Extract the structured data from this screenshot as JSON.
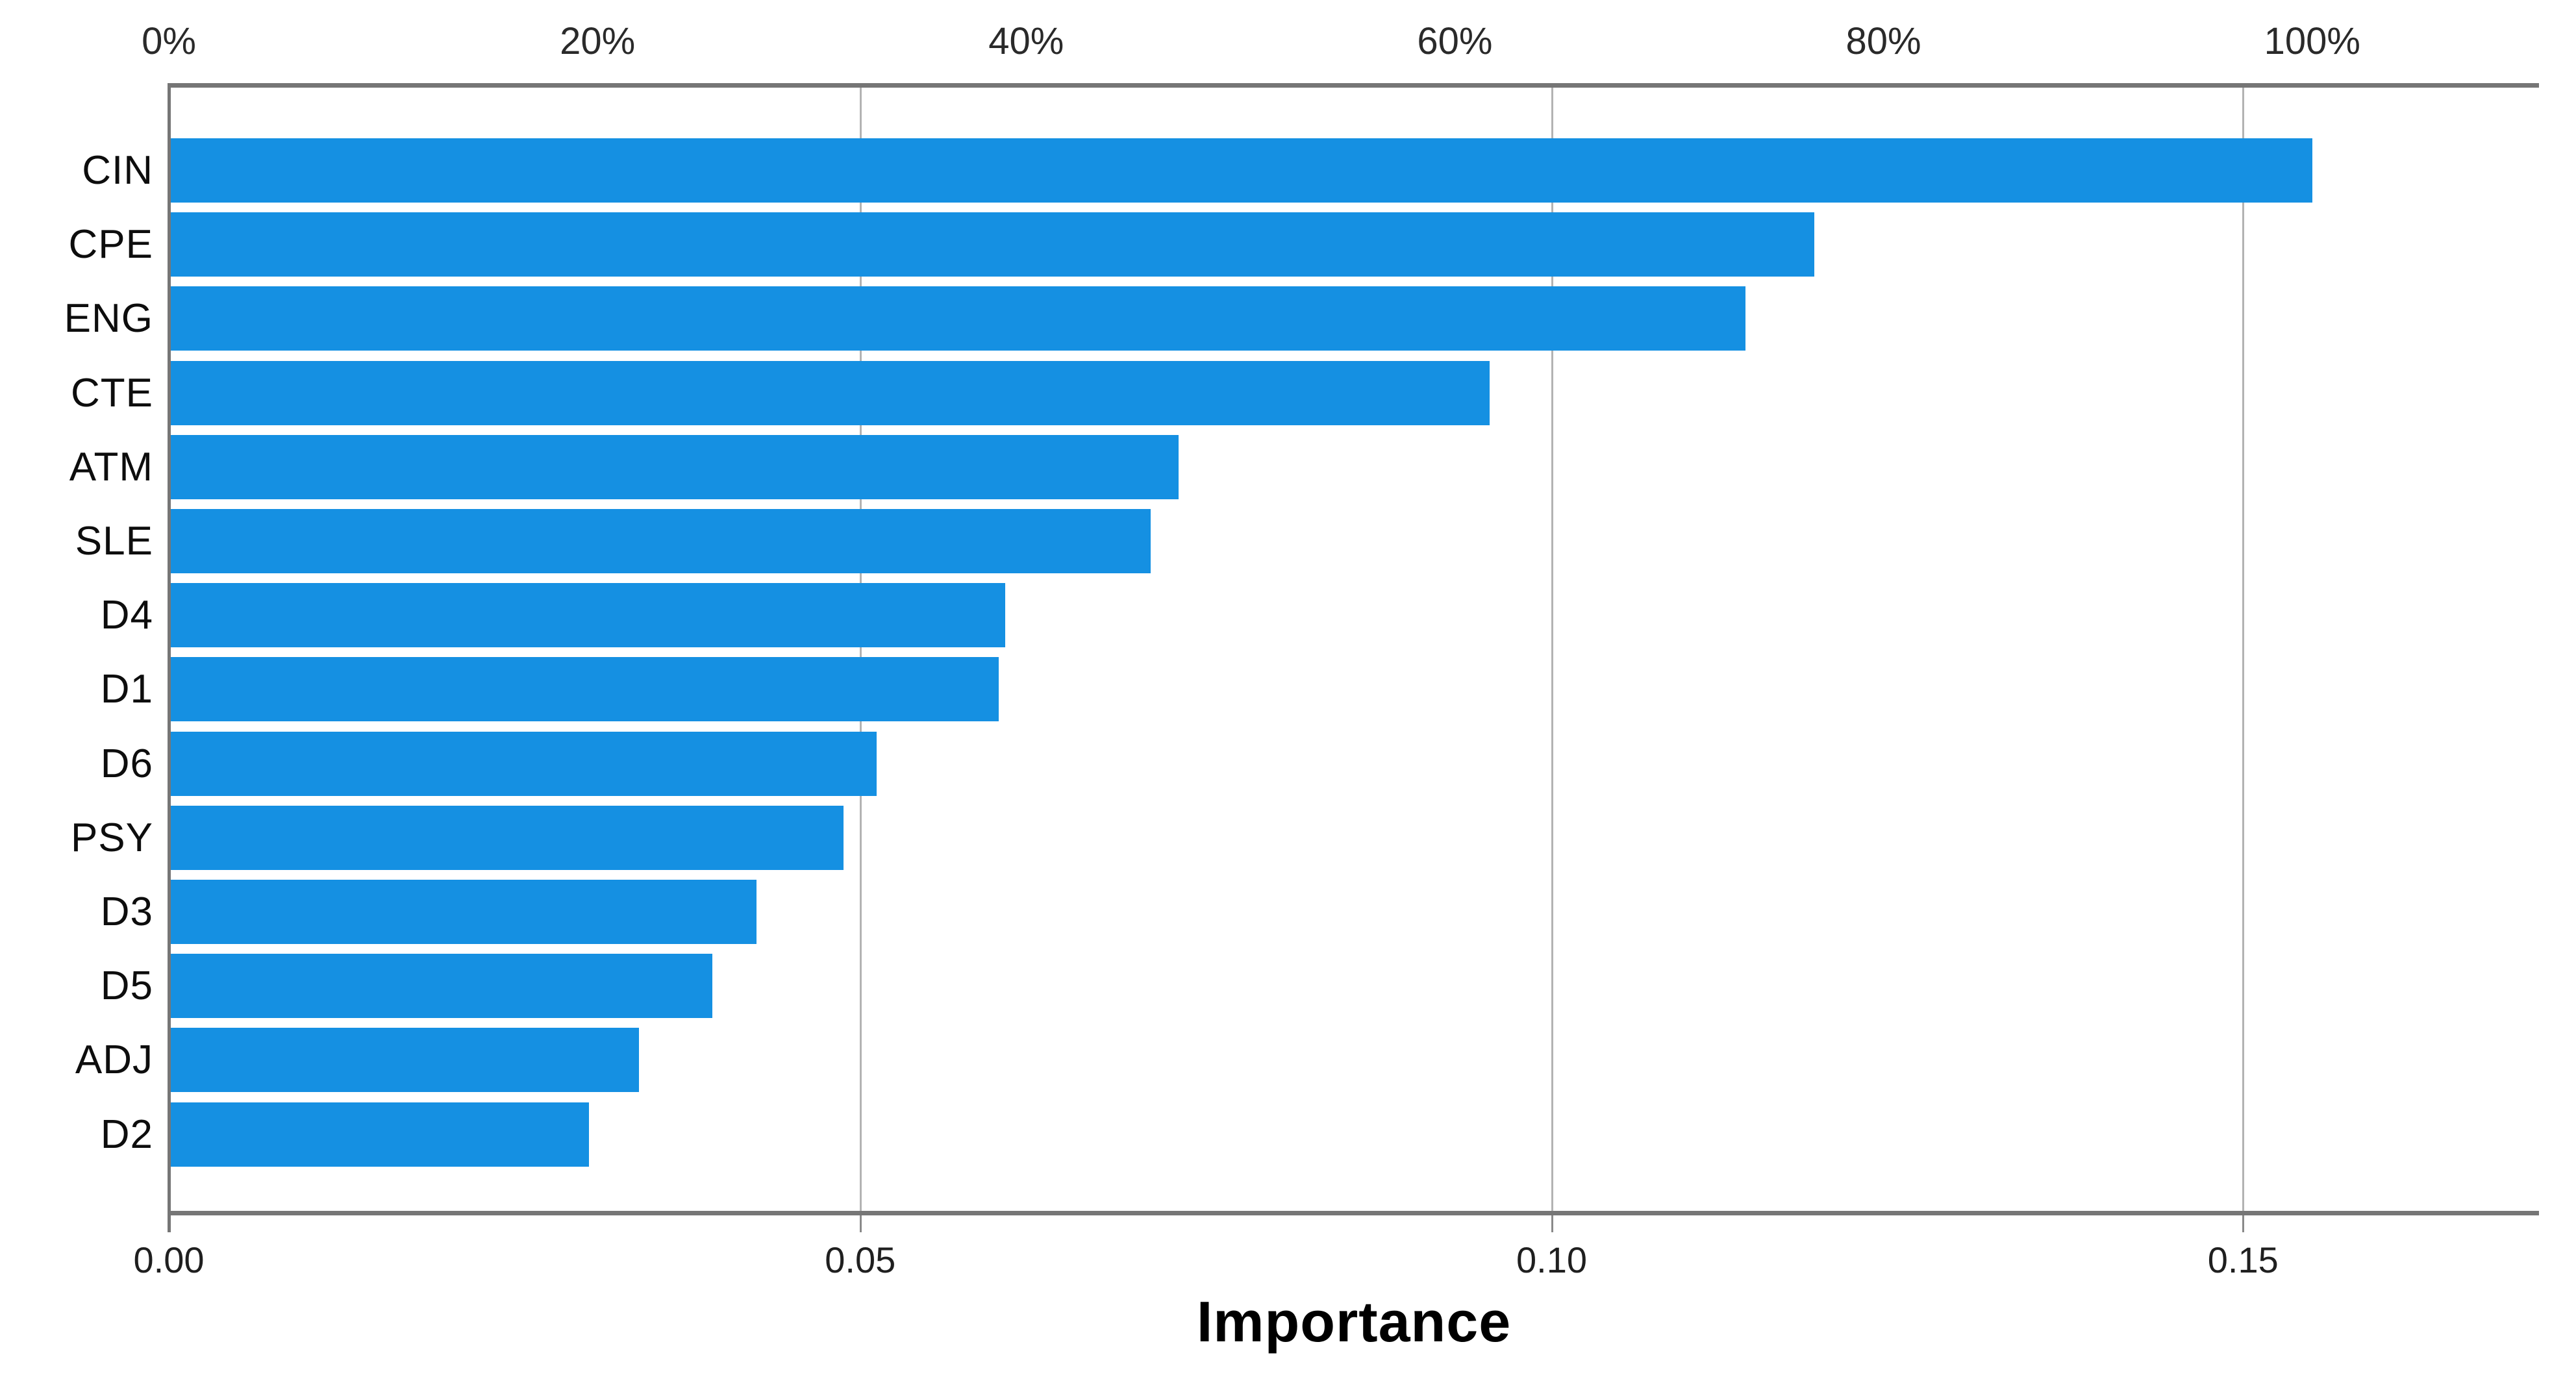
{
  "chart_data": {
    "type": "bar",
    "orientation": "horizontal",
    "title": "",
    "xlabel": "Importance",
    "ylabel": "",
    "categories": [
      "CIN",
      "CPE",
      "ENG",
      "CTE",
      "ATM",
      "SLE",
      "D4",
      "D1",
      "D6",
      "PSY",
      "D3",
      "D5",
      "ADJ",
      "D2"
    ],
    "values": [
      0.155,
      0.119,
      0.114,
      0.0955,
      0.073,
      0.071,
      0.0605,
      0.06,
      0.0512,
      0.0488,
      0.0425,
      0.0393,
      0.034,
      0.0304
    ],
    "xlim": [
      0,
      0.1714
    ],
    "grid": true,
    "gridline_values": [
      0.05,
      0.1,
      0.15
    ],
    "bottom_axis_tick_values": [
      0.0,
      0.05,
      0.1,
      0.15
    ],
    "bottom_axis_tick_labels": [
      "0.00",
      "0.05",
      "0.10",
      "0.15"
    ],
    "top_axis_percent_ticks": [
      0,
      20,
      40,
      60,
      80,
      100
    ],
    "top_axis_percent_labels": [
      "0%",
      "20%",
      "40%",
      "60%",
      "80%",
      "100%"
    ],
    "top_axis_value_at_100_percent": 0.155,
    "legend": "none",
    "colors": {
      "bar": "#1590e2",
      "axis": "#767676",
      "grid": "#b3b3b3",
      "tick": "#8a8a8a",
      "text": "#1f1f1f",
      "background": "#ffffff"
    }
  }
}
